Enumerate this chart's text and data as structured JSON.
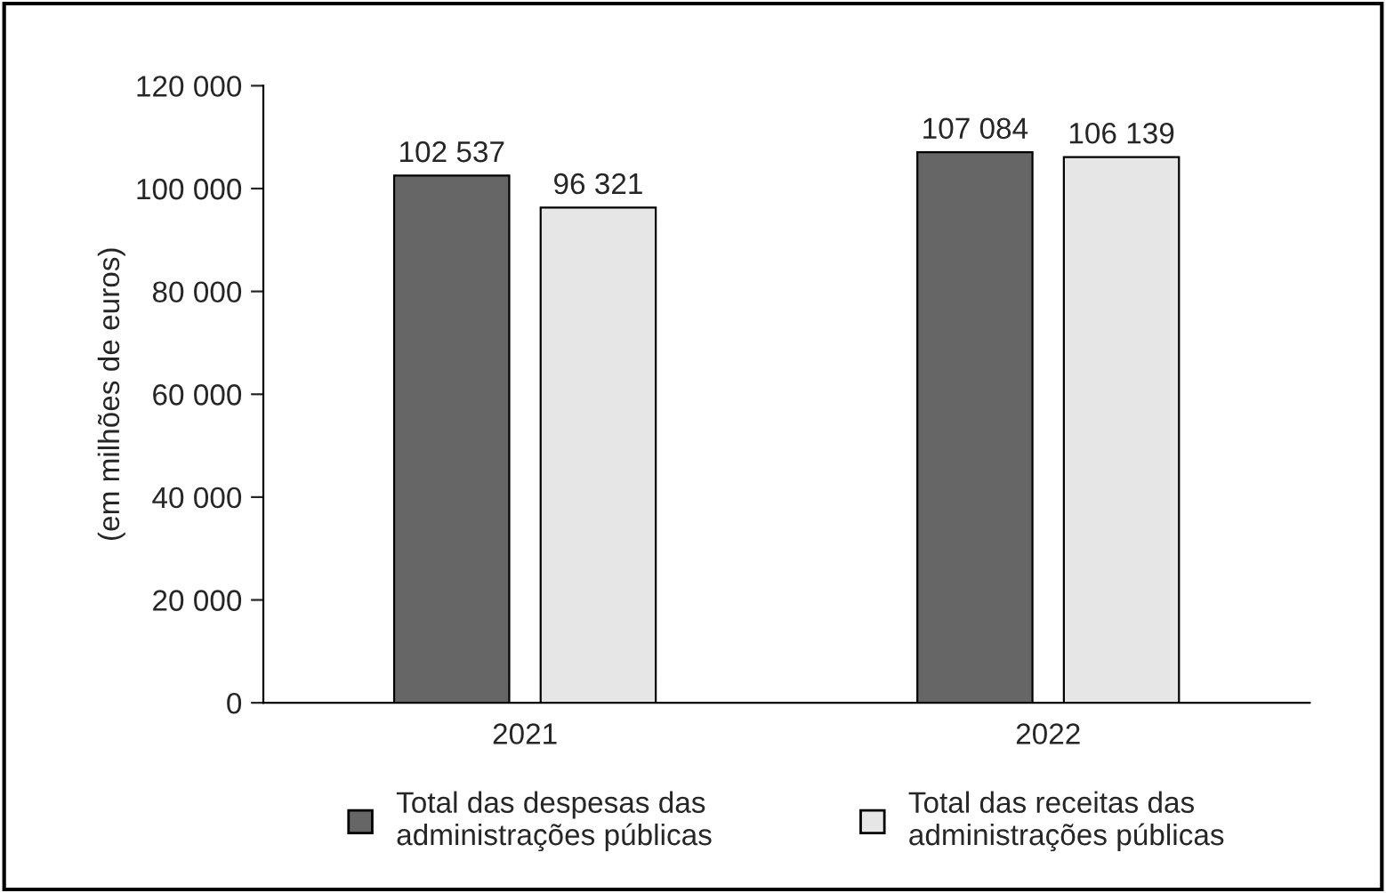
{
  "chart_data": {
    "type": "bar",
    "ylabel": "(em milhões de euros)",
    "categories": [
      "2021",
      "2022"
    ],
    "series": [
      {
        "name": "Total das despesas das\nadministrações públicas",
        "color": "#666666",
        "values": [
          102537,
          107084
        ],
        "value_labels": [
          "102 537",
          "107 084"
        ]
      },
      {
        "name": "Total das receitas das\nadministrações públicas",
        "color": "#e6e6e6",
        "values": [
          96321,
          106139
        ],
        "value_labels": [
          "96 321",
          "106 139"
        ]
      }
    ],
    "ylim": [
      0,
      120000
    ],
    "yticks": [
      {
        "value": 0,
        "label": "0"
      },
      {
        "value": 20000,
        "label": "20 000"
      },
      {
        "value": 40000,
        "label": "40 000"
      },
      {
        "value": 60000,
        "label": "60 000"
      },
      {
        "value": 80000,
        "label": "80 000"
      },
      {
        "value": 100000,
        "label": "100 000"
      },
      {
        "value": 120000,
        "label": "120 000"
      }
    ],
    "grid": false,
    "legend": "bottom"
  }
}
